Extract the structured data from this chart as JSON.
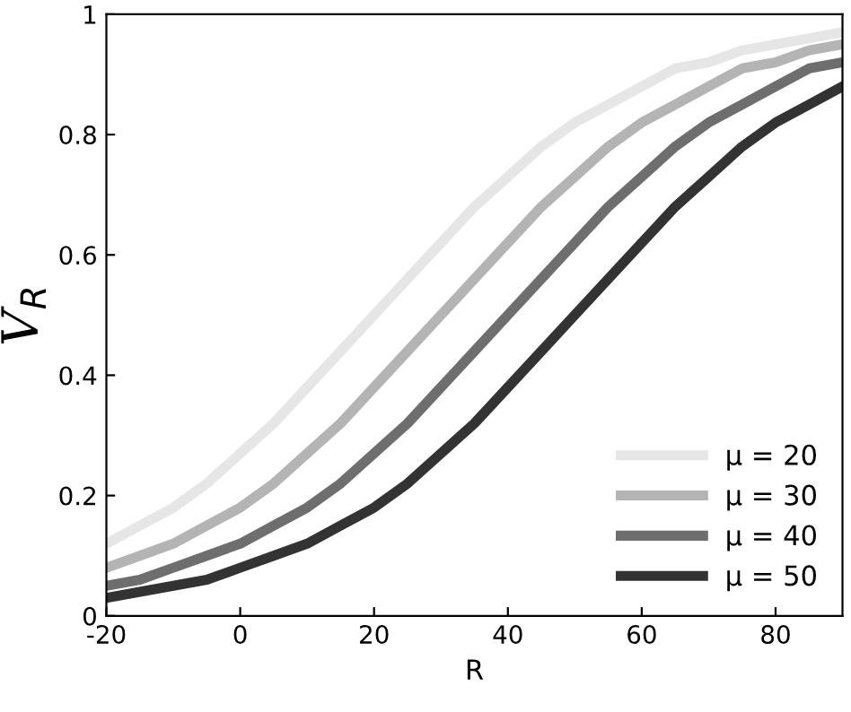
{
  "chart_data": {
    "type": "line",
    "xlabel": "R",
    "ylabel": "V$_{R}$",
    "x": [
      -20,
      -15,
      -10,
      -5,
      0,
      5,
      10,
      15,
      20,
      25,
      30,
      35,
      40,
      45,
      50,
      55,
      60,
      65,
      70,
      75,
      80,
      85,
      90
    ],
    "series": [
      {
        "name": "μ = 20",
        "color": "#e6e6e6",
        "values": [
          0.12,
          0.15,
          0.18,
          0.22,
          0.27,
          0.32,
          0.38,
          0.44,
          0.5,
          0.56,
          0.62,
          0.68,
          0.73,
          0.78,
          0.82,
          0.85,
          0.88,
          0.91,
          0.92,
          0.94,
          0.95,
          0.96,
          0.97
        ]
      },
      {
        "name": "μ = 30",
        "color": "#b4b4b4",
        "values": [
          0.08,
          0.1,
          0.12,
          0.15,
          0.18,
          0.22,
          0.27,
          0.32,
          0.38,
          0.44,
          0.5,
          0.56,
          0.62,
          0.68,
          0.73,
          0.78,
          0.82,
          0.85,
          0.88,
          0.91,
          0.92,
          0.94,
          0.95
        ]
      },
      {
        "name": "μ = 40",
        "color": "#6e6e6e",
        "values": [
          0.05,
          0.06,
          0.08,
          0.1,
          0.12,
          0.15,
          0.18,
          0.22,
          0.27,
          0.32,
          0.38,
          0.44,
          0.5,
          0.56,
          0.62,
          0.68,
          0.73,
          0.78,
          0.82,
          0.85,
          0.88,
          0.91,
          0.92
        ]
      },
      {
        "name": "μ = 50",
        "color": "#333333",
        "values": [
          0.03,
          0.04,
          0.05,
          0.06,
          0.08,
          0.1,
          0.12,
          0.15,
          0.18,
          0.22,
          0.27,
          0.32,
          0.38,
          0.44,
          0.5,
          0.56,
          0.62,
          0.68,
          0.73,
          0.78,
          0.82,
          0.85,
          0.88
        ]
      }
    ],
    "xlim": [
      -20,
      90
    ],
    "xticks": [
      -20,
      0,
      20,
      40,
      60,
      80
    ],
    "ylim": [
      0,
      1
    ],
    "yticks": [
      0,
      0.2,
      0.4,
      0.6,
      0.8,
      1
    ],
    "legend": "lower right",
    "grid": false,
    "marker": "none",
    "line_style": "solid"
  }
}
